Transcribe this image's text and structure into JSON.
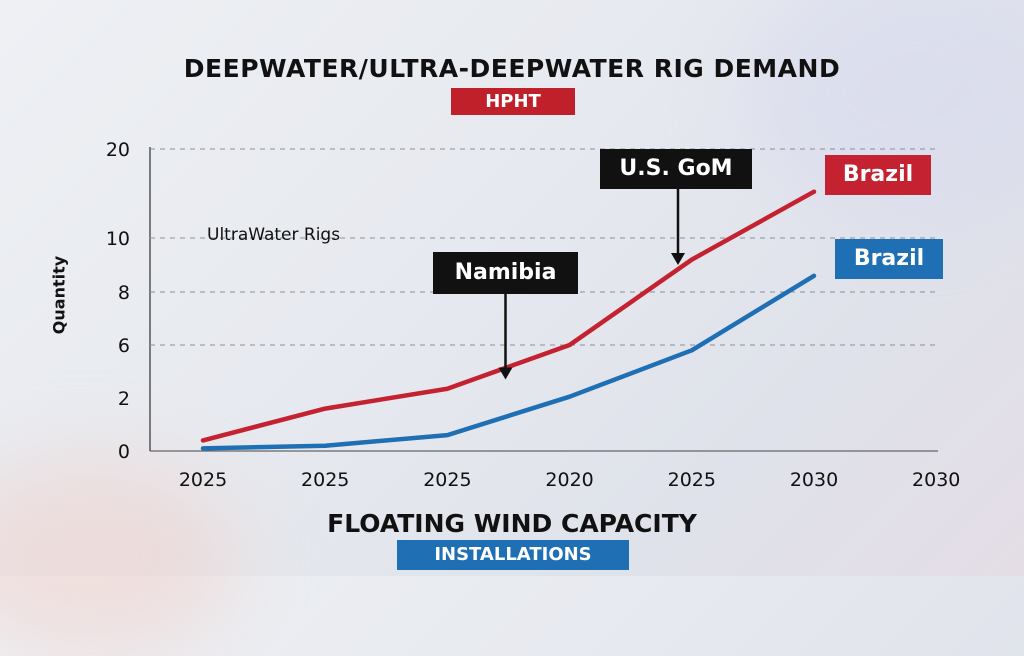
{
  "header": {
    "title": "DEEPWATER/ULTRA-DEEPWATER RIG DEMAND",
    "badge": "HPHT",
    "badge_color": "#c0202a"
  },
  "footer": {
    "title": "FLOATING WIND CAPACITY",
    "badge": "INSTALLATIONS",
    "badge_color": "#1f6fb4"
  },
  "chart_data": {
    "type": "line",
    "ylabel": "Quantity",
    "y_ticks": [
      "0",
      "2",
      "6",
      "8",
      "10",
      "20"
    ],
    "x_ticks": [
      "2025",
      "2025",
      "2025",
      "2020",
      "2025",
      "2030",
      "2030"
    ],
    "annotation": "UltraWater Rigs",
    "series": [
      {
        "name": "Brazil",
        "color": "#c42230",
        "values": [
          0.4,
          1.6,
          2.7,
          6.0,
          9.2,
          15.2
        ]
      },
      {
        "name": "Brazil",
        "color": "#1f6fb4",
        "values": [
          0.1,
          0.2,
          0.6,
          2.1,
          5.6,
          8.6
        ]
      }
    ],
    "callouts": [
      {
        "label": "Namibia",
        "at_x_index": 2.5,
        "value": 3.4
      },
      {
        "label": "U.S. GoM",
        "at_x_index": 4.0,
        "value": 9.0
      }
    ],
    "grid": "horizontal dashed"
  }
}
